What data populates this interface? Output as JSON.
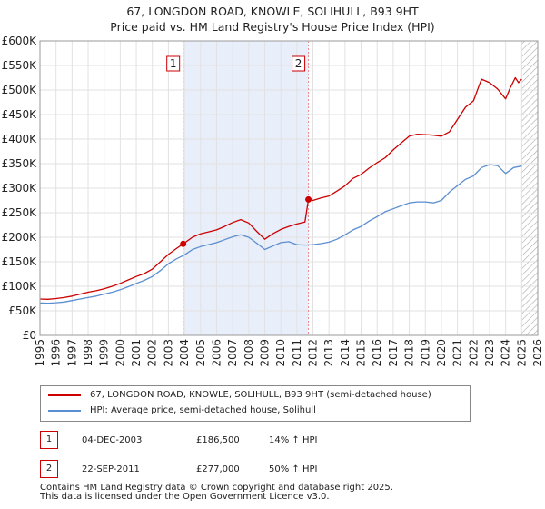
{
  "chart_data": {
    "type": "line",
    "title": "67, LONGDON ROAD, KNOWLE, SOLIHULL, B93 9HT",
    "subtitle": "Price paid vs. HM Land Registry's House Price Index (HPI)",
    "xlabel": "",
    "ylabel": "",
    "xlim": [
      1995,
      2026
    ],
    "ylim": [
      0,
      600000
    ],
    "x_ticks": [
      "1995",
      "1996",
      "1997",
      "1998",
      "1999",
      "2000",
      "2001",
      "2002",
      "2003",
      "2004",
      "2005",
      "2006",
      "2007",
      "2008",
      "2009",
      "2010",
      "2011",
      "2012",
      "2013",
      "2014",
      "2015",
      "2016",
      "2017",
      "2018",
      "2019",
      "2020",
      "2021",
      "2022",
      "2023",
      "2024",
      "2025",
      "2026"
    ],
    "y_ticks": [
      {
        "value": 0,
        "label": "£0"
      },
      {
        "value": 50000,
        "label": "£50K"
      },
      {
        "value": 100000,
        "label": "£100K"
      },
      {
        "value": 150000,
        "label": "£150K"
      },
      {
        "value": 200000,
        "label": "£200K"
      },
      {
        "value": 250000,
        "label": "£250K"
      },
      {
        "value": 300000,
        "label": "£300K"
      },
      {
        "value": 350000,
        "label": "£350K"
      },
      {
        "value": 400000,
        "label": "£400K"
      },
      {
        "value": 450000,
        "label": "£450K"
      },
      {
        "value": 500000,
        "label": "£500K"
      },
      {
        "value": 550000,
        "label": "£550K"
      },
      {
        "value": 600000,
        "label": "£600K"
      }
    ],
    "grid": true,
    "shaded_region": {
      "from": 2003.92,
      "to": 2011.72
    },
    "future_hatch_from": 2025.0,
    "series": [
      {
        "name": "67, LONGDON ROAD, KNOWLE, SOLIHULL, B93 9HT (semi-detached house)",
        "color": "#cc0000",
        "x": [
          1995.0,
          1995.5,
          1996.0,
          1996.5,
          1997.0,
          1997.5,
          1998.0,
          1998.5,
          1999.0,
          1999.5,
          2000.0,
          2000.5,
          2001.0,
          2001.5,
          2002.0,
          2002.5,
          2003.0,
          2003.5,
          2003.92,
          2004.5,
          2005.0,
          2005.5,
          2006.0,
          2006.5,
          2007.0,
          2007.5,
          2008.0,
          2008.5,
          2009.0,
          2009.5,
          2010.0,
          2010.5,
          2011.0,
          2011.5,
          2011.72,
          2012.0,
          2012.5,
          2013.0,
          2013.5,
          2014.0,
          2014.5,
          2015.0,
          2015.5,
          2016.0,
          2016.5,
          2017.0,
          2017.5,
          2018.0,
          2018.5,
          2019.0,
          2019.5,
          2020.0,
          2020.5,
          2021.0,
          2021.5,
          2022.0,
          2022.3,
          2022.5,
          2023.0,
          2023.5,
          2024.0,
          2024.3,
          2024.6,
          2024.8,
          2025.0
        ],
        "values": [
          74000,
          73500,
          75000,
          77000,
          80000,
          84000,
          88000,
          91000,
          95000,
          100000,
          106000,
          113000,
          120000,
          126000,
          135000,
          150000,
          165000,
          177000,
          186500,
          200000,
          207000,
          211000,
          215000,
          222000,
          230000,
          236000,
          229000,
          212000,
          196000,
          207000,
          216000,
          222000,
          227000,
          231000,
          277000,
          275000,
          280000,
          284000,
          294000,
          305000,
          320000,
          328000,
          341000,
          352000,
          362000,
          378000,
          392000,
          406000,
          410000,
          409000,
          408000,
          406000,
          415000,
          440000,
          465000,
          478000,
          505000,
          522000,
          515000,
          502000,
          482000,
          505000,
          525000,
          515000,
          522000
        ]
      },
      {
        "name": "HPI: Average price, semi-detached house, Solihull",
        "color": "#5b8ed0",
        "x": [
          1995.0,
          1995.5,
          1996.0,
          1996.5,
          1997.0,
          1997.5,
          1998.0,
          1998.5,
          1999.0,
          1999.5,
          2000.0,
          2000.5,
          2001.0,
          2001.5,
          2002.0,
          2002.5,
          2003.0,
          2003.5,
          2004.0,
          2004.5,
          2005.0,
          2005.5,
          2006.0,
          2006.5,
          2007.0,
          2007.5,
          2008.0,
          2008.5,
          2009.0,
          2009.5,
          2010.0,
          2010.5,
          2011.0,
          2011.5,
          2012.0,
          2012.5,
          2013.0,
          2013.5,
          2014.0,
          2014.5,
          2015.0,
          2015.5,
          2016.0,
          2016.5,
          2017.0,
          2017.5,
          2018.0,
          2018.5,
          2019.0,
          2019.5,
          2020.0,
          2020.5,
          2021.0,
          2021.5,
          2022.0,
          2022.5,
          2023.0,
          2023.5,
          2024.0,
          2024.5,
          2025.0
        ],
        "values": [
          66000,
          65500,
          66500,
          68000,
          71000,
          74000,
          77000,
          80000,
          84000,
          88000,
          93000,
          99000,
          106000,
          112000,
          120000,
          132000,
          146000,
          156000,
          164000,
          175000,
          181000,
          185000,
          189000,
          195000,
          201000,
          205000,
          200000,
          188000,
          175000,
          182000,
          189000,
          191000,
          185000,
          184000,
          185000,
          187000,
          190000,
          196000,
          205000,
          215000,
          222000,
          233000,
          242000,
          252000,
          258000,
          264000,
          270000,
          272000,
          272000,
          270000,
          275000,
          292000,
          305000,
          318000,
          325000,
          342000,
          348000,
          346000,
          330000,
          342000,
          345000
        ]
      }
    ],
    "sales": [
      {
        "label": "1",
        "x": 2003.92,
        "value": 186500
      },
      {
        "label": "2",
        "x": 2011.72,
        "value": 277000
      }
    ]
  },
  "legend": {
    "series_0": "67, LONGDON ROAD, KNOWLE, SOLIHULL, B93 9HT (semi-detached house)",
    "series_1": "HPI: Average price, semi-detached house, Solihull",
    "color_0": "#cc0000",
    "color_1": "#5b8ed0"
  },
  "sales_table": [
    {
      "badge": "1",
      "date": "04-DEC-2003",
      "price": "£186,500",
      "hpi": "14% ↑ HPI"
    },
    {
      "badge": "2",
      "date": "22-SEP-2011",
      "price": "£277,000",
      "hpi": "50% ↑ HPI"
    }
  ],
  "footer": {
    "line1": "Contains HM Land Registry data © Crown copyright and database right 2025.",
    "line2": "This data is licensed under the Open Government Licence v3.0."
  }
}
